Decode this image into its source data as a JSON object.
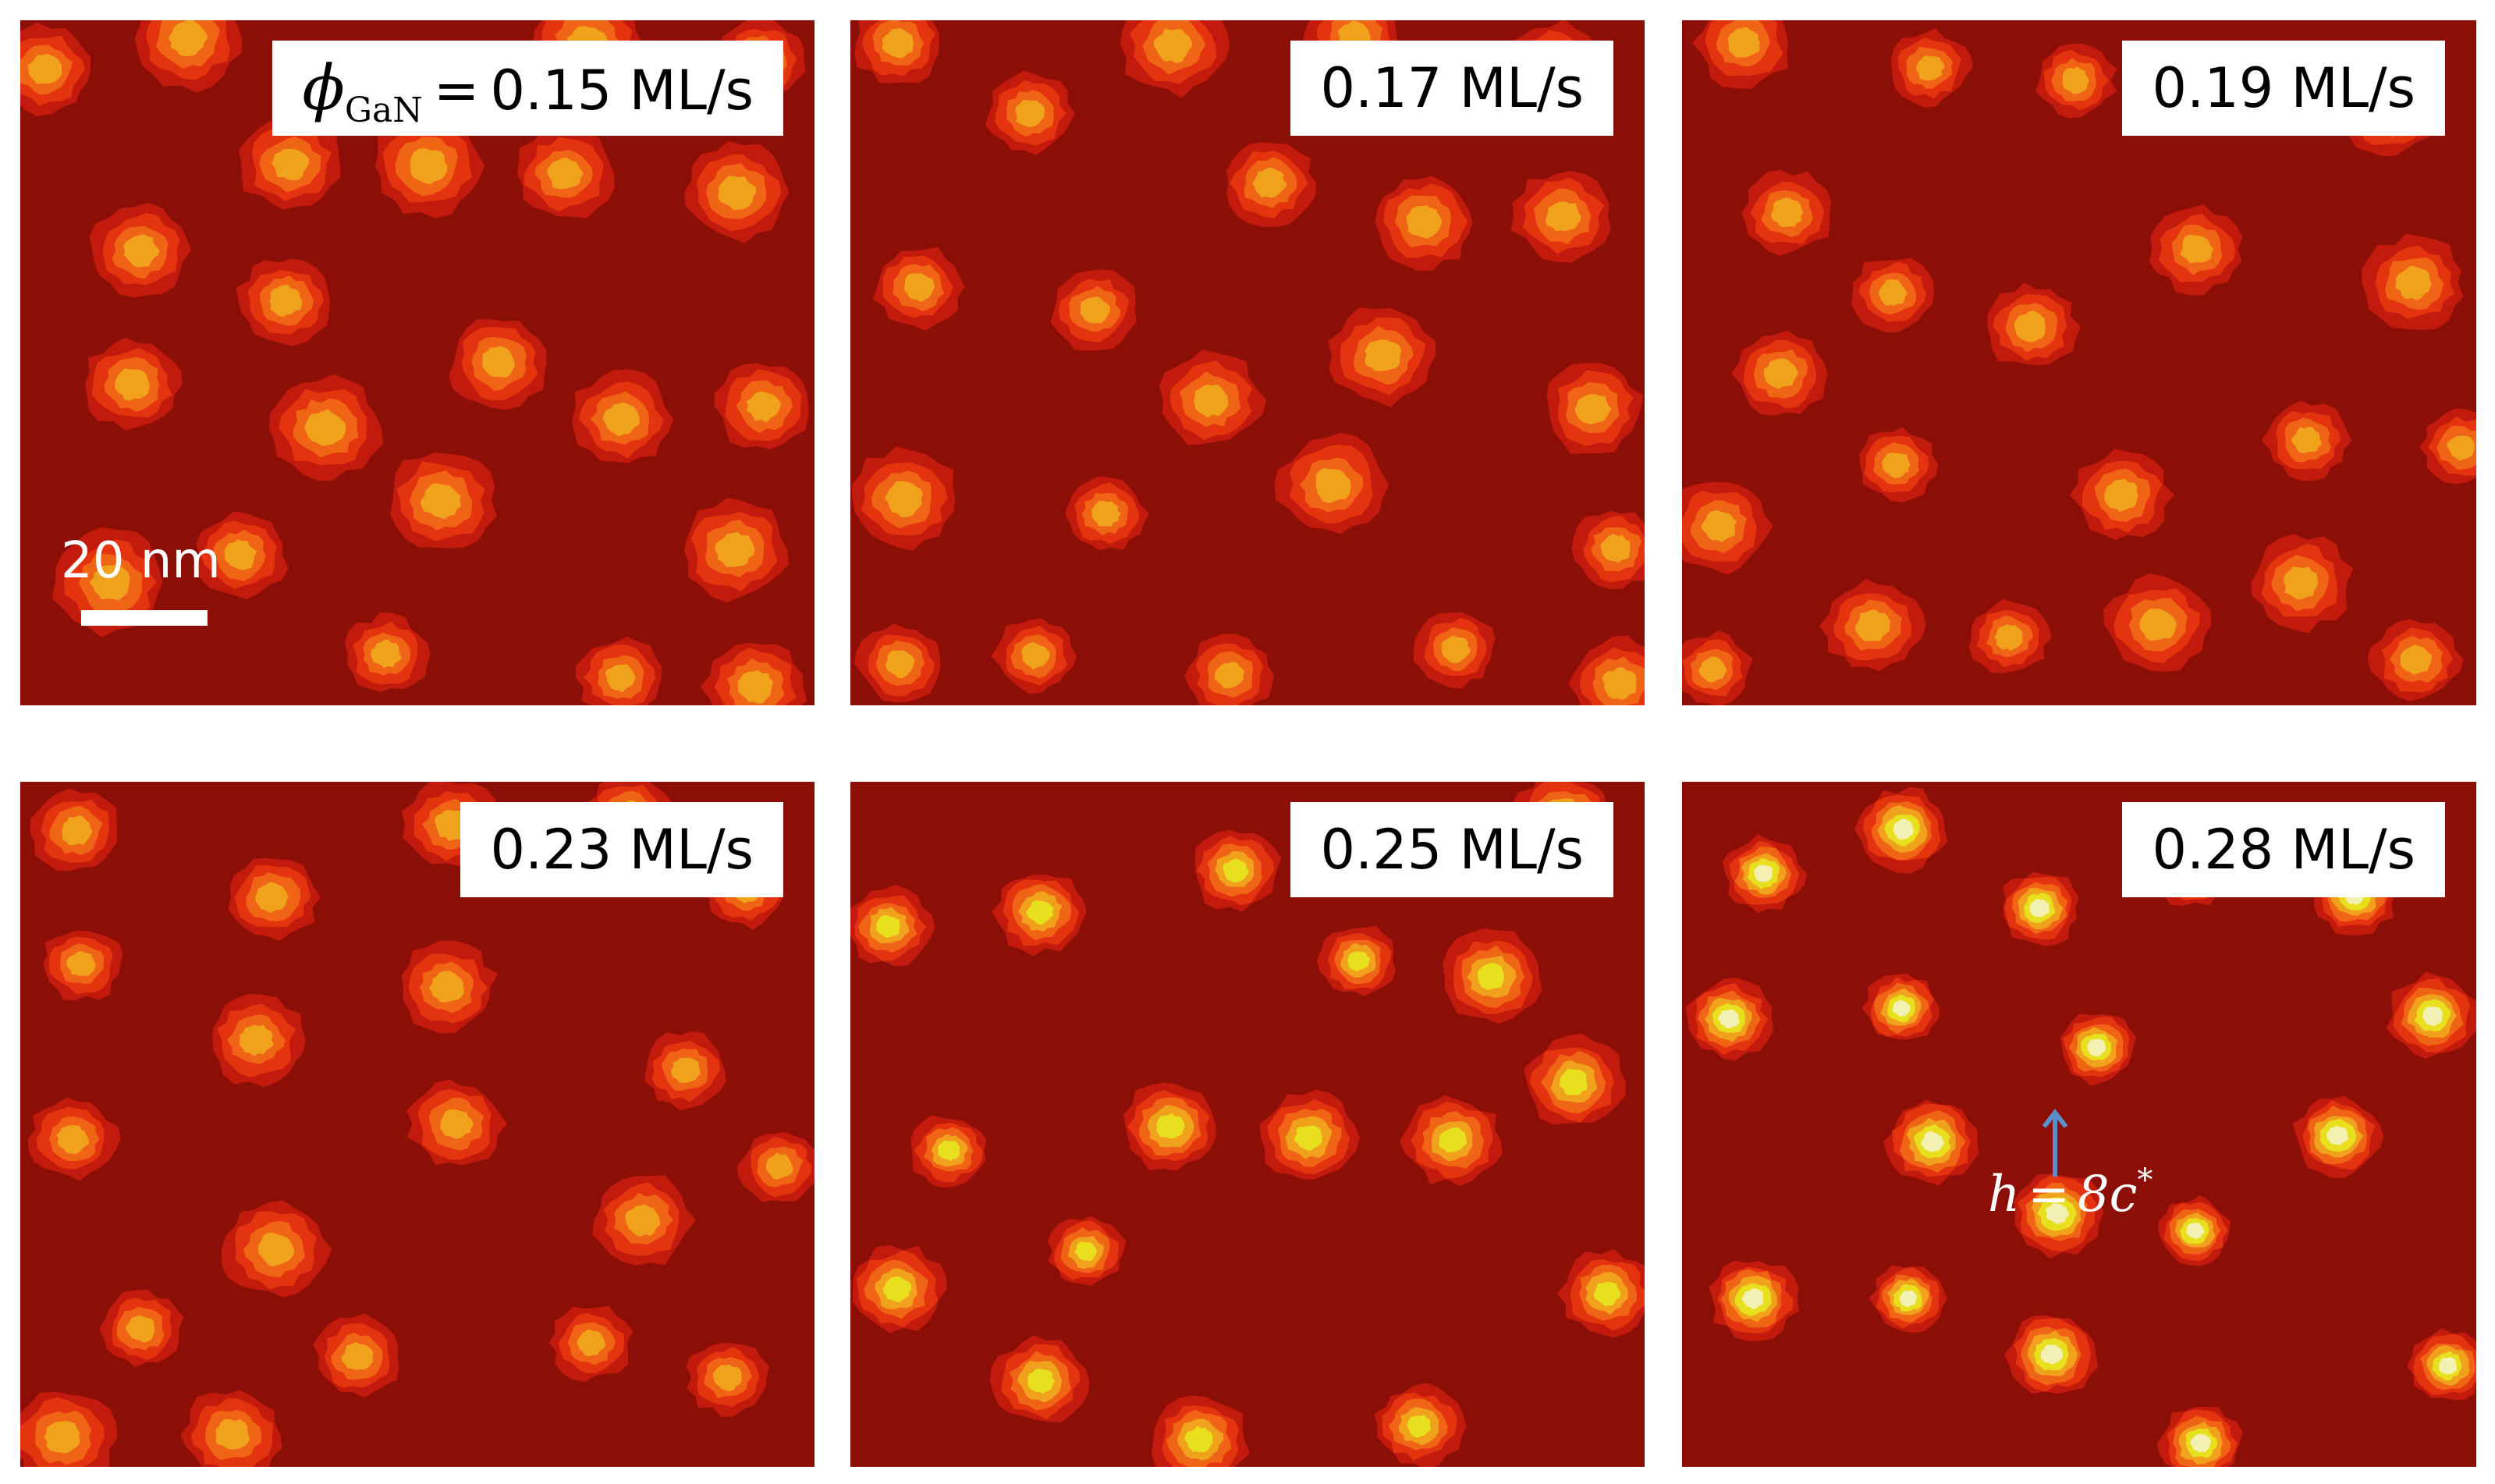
{
  "panels": [
    {
      "label": "0.15 ML/s",
      "prefix_symbol": "ϕ",
      "prefix_sub": "GaN",
      "prefix_eq": "="
    },
    {
      "label": "0.17 ML/s"
    },
    {
      "label": "0.19 ML/s"
    },
    {
      "label": "0.23 ML/s"
    },
    {
      "label": "0.25 ML/s"
    },
    {
      "label": "0.28 ML/s"
    }
  ],
  "scalebar": {
    "text": "20 nm"
  },
  "annotation": {
    "h": "h",
    "eq": "=",
    "value": "8c",
    "sup": "*"
  },
  "colors": {
    "background": "#8b0f06",
    "level1": "#c21a0c",
    "level2": "#e3330f",
    "level3": "#f06416",
    "level4": "#f0a21c",
    "level5": "#e8e01f",
    "level6": "#f3f0b4",
    "arrow": "#5b8fc9"
  }
}
